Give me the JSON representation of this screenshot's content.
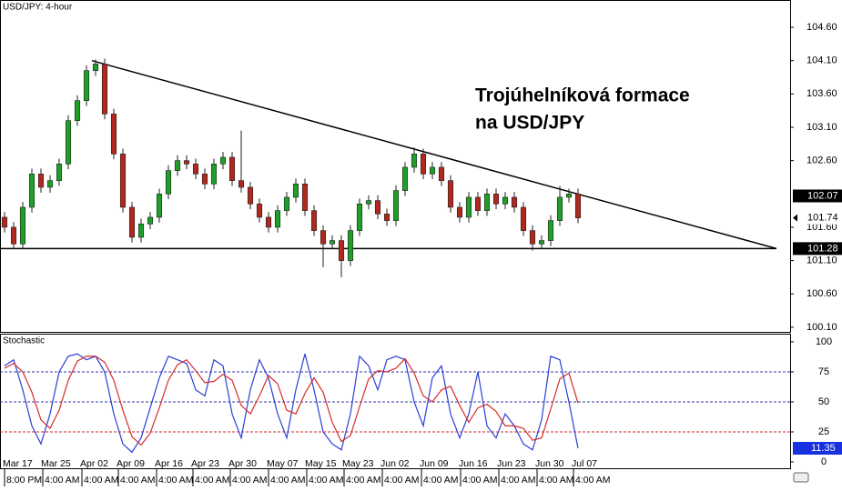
{
  "chart_data": [
    {
      "type": "candlestick",
      "title": "USD/JPY: 4-hour",
      "annotation": [
        "Trojúhelníková formace",
        "na USD/JPY"
      ],
      "xlim": [
        -0.5,
        86.3
      ],
      "ylim": [
        100.03,
        105.01
      ],
      "yticks": [
        {
          "value": 104.6,
          "label": "104.60"
        },
        {
          "value": 104.1,
          "label": "104.10"
        },
        {
          "value": 103.6,
          "label": "103.60"
        },
        {
          "value": 103.1,
          "label": "103.10"
        },
        {
          "value": 102.6,
          "label": "102.60"
        },
        {
          "value": 101.6,
          "label": "101.60"
        },
        {
          "value": 101.1,
          "label": "101.10"
        },
        {
          "value": 100.6,
          "label": "100.60"
        },
        {
          "value": 100.1,
          "label": "100.10"
        }
      ],
      "price_markers": [
        {
          "value": 102.07,
          "label": "102.07",
          "style": "filled"
        },
        {
          "value": 101.74,
          "label": "101.74",
          "style": "outline"
        },
        {
          "value": 101.28,
          "label": "101.28",
          "style": "filled"
        }
      ],
      "up_color": "#1f9e2a",
      "down_color": "#b0281e",
      "open": [
        101.75,
        101.6,
        101.35,
        101.9,
        102.4,
        102.2,
        102.3,
        102.55,
        103.2,
        103.5,
        103.95,
        104.05,
        103.3,
        102.7,
        101.9,
        101.45,
        101.65,
        101.75,
        102.1,
        102.45,
        102.6,
        102.55,
        102.4,
        102.25,
        102.55,
        102.65,
        102.3,
        102.2,
        101.95,
        101.75,
        101.6,
        101.85,
        102.05,
        102.25,
        101.85,
        101.55,
        101.35,
        101.4,
        101.1,
        101.55,
        101.95,
        102.0,
        101.8,
        101.7,
        102.15,
        102.5,
        102.7,
        102.4,
        102.5,
        102.3,
        101.9,
        101.75,
        102.05,
        101.85,
        102.1,
        101.95,
        102.05,
        101.9,
        101.55,
        101.35,
        101.4,
        101.7,
        102.05,
        102.1
      ],
      "close": [
        101.6,
        101.35,
        101.9,
        102.4,
        102.2,
        102.3,
        102.55,
        103.2,
        103.5,
        103.95,
        104.05,
        103.3,
        102.7,
        101.9,
        101.45,
        101.65,
        101.75,
        102.1,
        102.45,
        102.6,
        102.55,
        102.4,
        102.25,
        102.55,
        102.65,
        102.3,
        102.2,
        101.95,
        101.75,
        101.6,
        101.85,
        102.05,
        102.25,
        101.85,
        101.55,
        101.35,
        101.4,
        101.1,
        101.55,
        101.95,
        102.0,
        101.8,
        101.7,
        102.15,
        102.5,
        102.7,
        102.4,
        102.5,
        102.3,
        101.9,
        101.75,
        102.05,
        101.85,
        102.1,
        101.95,
        102.05,
        101.9,
        101.55,
        101.35,
        101.4,
        101.7,
        102.05,
        102.1,
        101.74
      ],
      "high": [
        101.83,
        101.68,
        101.98,
        102.48,
        102.48,
        102.38,
        102.63,
        103.28,
        103.58,
        104.03,
        104.12,
        104.13,
        103.38,
        102.78,
        101.98,
        101.73,
        101.83,
        102.18,
        102.53,
        102.68,
        102.68,
        102.63,
        102.48,
        102.63,
        102.73,
        102.73,
        103.05,
        102.28,
        102.03,
        101.83,
        101.93,
        102.13,
        102.33,
        102.33,
        101.93,
        101.63,
        101.48,
        101.48,
        101.63,
        102.03,
        102.08,
        102.08,
        101.88,
        102.23,
        102.58,
        102.8,
        102.78,
        102.58,
        102.58,
        102.38,
        101.98,
        102.13,
        102.13,
        102.18,
        102.18,
        102.13,
        102.13,
        101.98,
        101.63,
        101.48,
        101.78,
        102.22,
        102.18,
        102.18
      ],
      "low": [
        101.52,
        101.27,
        101.27,
        101.82,
        102.12,
        102.12,
        102.22,
        102.47,
        103.12,
        103.42,
        103.87,
        103.22,
        102.62,
        101.82,
        101.37,
        101.37,
        101.57,
        101.67,
        102.02,
        102.37,
        102.47,
        102.32,
        102.17,
        102.17,
        102.47,
        102.22,
        102.12,
        101.87,
        101.67,
        101.52,
        101.52,
        101.77,
        101.97,
        101.77,
        101.47,
        101.0,
        101.27,
        100.85,
        101.02,
        101.47,
        101.87,
        101.72,
        101.62,
        101.62,
        102.07,
        102.42,
        102.32,
        102.32,
        102.22,
        101.82,
        101.67,
        101.67,
        101.77,
        101.77,
        101.87,
        101.87,
        101.82,
        101.47,
        101.25,
        101.27,
        101.32,
        101.62,
        101.97,
        101.66
      ],
      "trendlines": [
        {
          "x": [
            9.6,
            84.8
          ],
          "y": [
            104.1,
            101.28
          ]
        },
        {
          "x": [
            -0.5,
            84.8
          ],
          "y": [
            101.28,
            101.28
          ]
        }
      ]
    },
    {
      "type": "line",
      "title": "Stochastic",
      "xlim": [
        -0.5,
        86.3
      ],
      "ylim": [
        -5.3,
        106
      ],
      "yticks": [
        100,
        75,
        50,
        25,
        0
      ],
      "levels": [
        {
          "value": 75,
          "color": "#3333aa"
        },
        {
          "value": 50,
          "color": "#3333aa"
        },
        {
          "value": 25,
          "color": "#cc2222"
        }
      ],
      "xticks": [
        {
          "value": 0,
          "label": "Mar 17"
        },
        {
          "value": 4.2,
          "label": "Mar 25"
        },
        {
          "value": 8.5,
          "label": "Apr 02"
        },
        {
          "value": 12.5,
          "label": "Apr 09"
        },
        {
          "value": 16.7,
          "label": "Apr 16"
        },
        {
          "value": 20.7,
          "label": "Apr 23"
        },
        {
          "value": 24.8,
          "label": "Apr 30"
        },
        {
          "value": 29,
          "label": "May 07"
        },
        {
          "value": 33.2,
          "label": "May 15"
        },
        {
          "value": 37.3,
          "label": "May 23"
        },
        {
          "value": 41.5,
          "label": "Jun 02"
        },
        {
          "value": 45.8,
          "label": "Jun 09"
        },
        {
          "value": 50.1,
          "label": "Jun 16"
        },
        {
          "value": 54.3,
          "label": "Jun 23"
        },
        {
          "value": 58.5,
          "label": "Jun 30"
        },
        {
          "value": 62.5,
          "label": "Jul 07"
        }
      ],
      "xtick_times": [
        "8:00 PM",
        "4:00 AM",
        "4:00 AM",
        "4:00 AM",
        "4:00 AM",
        "4:00 AM",
        "4:00 AM",
        "4:00 AM",
        "4:00 AM",
        "4:00 AM",
        "4:00 AM",
        "4:00 AM",
        "4:00 AM",
        "4:00 AM",
        "4:00 AM",
        "4:00 AM"
      ],
      "value_marker": {
        "value": 11.35,
        "label": "11.35"
      },
      "series": [
        {
          "color": "#2b3fd6",
          "values": [
            80,
            85,
            60,
            30,
            15,
            40,
            75,
            88,
            90,
            85,
            88,
            75,
            40,
            15,
            8,
            20,
            45,
            70,
            88,
            85,
            82,
            60,
            55,
            85,
            80,
            40,
            20,
            60,
            85,
            70,
            40,
            20,
            60,
            90,
            60,
            25,
            15,
            10,
            40,
            88,
            80,
            60,
            85,
            88,
            85,
            50,
            30,
            70,
            80,
            40,
            20,
            40,
            75,
            30,
            20,
            40,
            30,
            15,
            10,
            35,
            88,
            85,
            50,
            11.35
          ]
        },
        {
          "color": "#d62b2b",
          "values": [
            78,
            82,
            75,
            58,
            35,
            28,
            43,
            68,
            84,
            88,
            88,
            83,
            68,
            43,
            21,
            14,
            24,
            45,
            68,
            81,
            85,
            76,
            66,
            67,
            73,
            68,
            47,
            40,
            55,
            72,
            65,
            43,
            40,
            57,
            70,
            58,
            33,
            17,
            22,
            46,
            69,
            76,
            75,
            78,
            86,
            74,
            55,
            50,
            60,
            63,
            47,
            33,
            45,
            48,
            42,
            30,
            30,
            28,
            18,
            20,
            44,
            69,
            74,
            49
          ]
        }
      ]
    }
  ]
}
